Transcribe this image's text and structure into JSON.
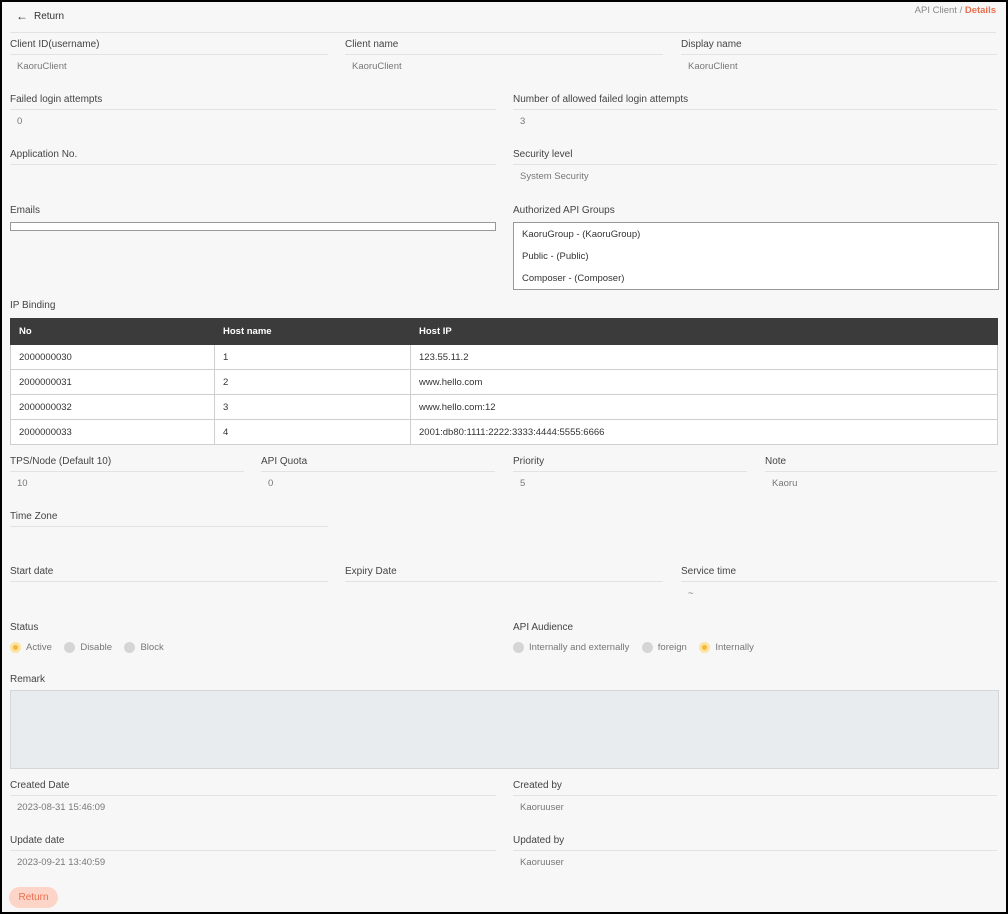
{
  "header": {
    "return_label": "Return",
    "breadcrumb_parent": "API Client",
    "breadcrumb_sep": "/",
    "breadcrumb_current": "Details",
    "accent": "#e8704f"
  },
  "fields": {
    "client_id": {
      "label": "Client ID(username)",
      "value": "KaoruClient"
    },
    "client_name": {
      "label": "Client name",
      "value": "KaoruClient"
    },
    "display_name": {
      "label": "Display name",
      "value": "KaoruClient"
    },
    "failed_login": {
      "label": "Failed login attempts",
      "value": "0"
    },
    "allowed_failed": {
      "label": "Number of allowed failed login attempts",
      "value": "3"
    },
    "application_no": {
      "label": "Application No.",
      "value": ""
    },
    "security_level": {
      "label": "Security level",
      "value": "System Security"
    },
    "tps": {
      "label": "TPS/Node (Default 10)",
      "value": "10"
    },
    "api_quota": {
      "label": "API Quota",
      "value": "0"
    },
    "priority": {
      "label": "Priority",
      "value": "5"
    },
    "note": {
      "label": "Note",
      "value": "Kaoru"
    },
    "time_zone": {
      "label": "Time Zone",
      "value": ""
    },
    "start_date": {
      "label": "Start date",
      "value": ""
    },
    "expiry_date": {
      "label": "Expiry Date",
      "value": ""
    },
    "service_time": {
      "label": "Service time",
      "value": "~"
    },
    "created_date": {
      "label": "Created Date",
      "value": "2023-08-31 15:46:09"
    },
    "created_by": {
      "label": "Created by",
      "value": "Kaoruuser"
    },
    "update_date": {
      "label": "Update date",
      "value": "2023-09-21 13:40:59"
    },
    "updated_by": {
      "label": "Updated by",
      "value": "Kaoruuser"
    }
  },
  "emails": {
    "label": "Emails"
  },
  "api_groups": {
    "label": "Authorized API Groups",
    "items": [
      "KaoruGroup - (KaoruGroup)",
      "Public - (Public)",
      "Composer - (Composer)"
    ]
  },
  "ip_binding": {
    "label": "IP Binding",
    "columns": [
      "No",
      "Host name",
      "Host IP"
    ],
    "rows": [
      [
        "2000000030",
        "1",
        "123.55.11.2"
      ],
      [
        "2000000031",
        "2",
        "www.hello.com"
      ],
      [
        "2000000032",
        "3",
        "www.hello.com:12"
      ],
      [
        "2000000033",
        "4",
        "2001:db80:1111:2222:3333:4444:5555:6666"
      ]
    ]
  },
  "status": {
    "label": "Status",
    "options": [
      "Active",
      "Disable",
      "Block"
    ],
    "selected": "Active"
  },
  "audience": {
    "label": "API Audience",
    "options": [
      "Internally and externally",
      "foreign",
      "Internally"
    ],
    "selected": "Internally"
  },
  "remark": {
    "label": "Remark",
    "value": ""
  },
  "footer": {
    "return_label": "Return"
  }
}
